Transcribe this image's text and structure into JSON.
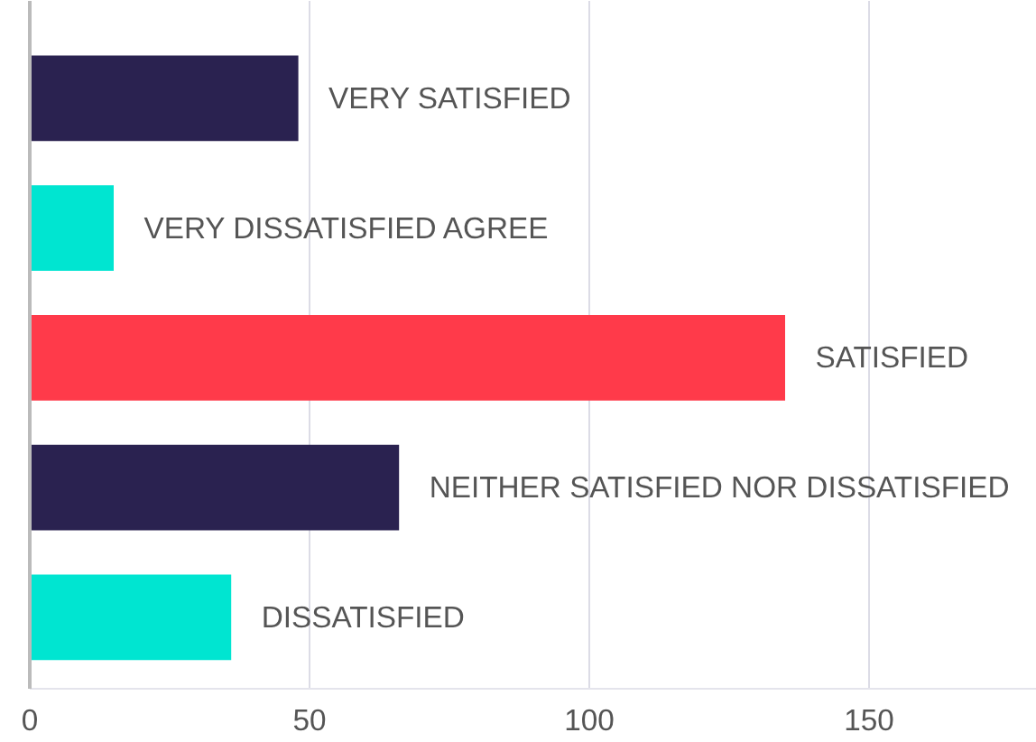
{
  "chart_data": {
    "type": "bar",
    "orientation": "horizontal",
    "categories": [
      "VERY SATISFIED",
      "VERY DISSATISFIED AGREE",
      "SATISFIED",
      "NEITHER SATISFIED NOR DISSATISFIED",
      "DISSATISFIED"
    ],
    "values": [
      48,
      15,
      135,
      66,
      36
    ],
    "colors": [
      "#2a2250",
      "#00e5d1",
      "#ff3a4a",
      "#2a2250",
      "#00e5d1"
    ],
    "xlim": [
      0,
      180
    ],
    "xticks": [
      0,
      50,
      100,
      150
    ],
    "grid": "x",
    "tick_labels": "x"
  }
}
